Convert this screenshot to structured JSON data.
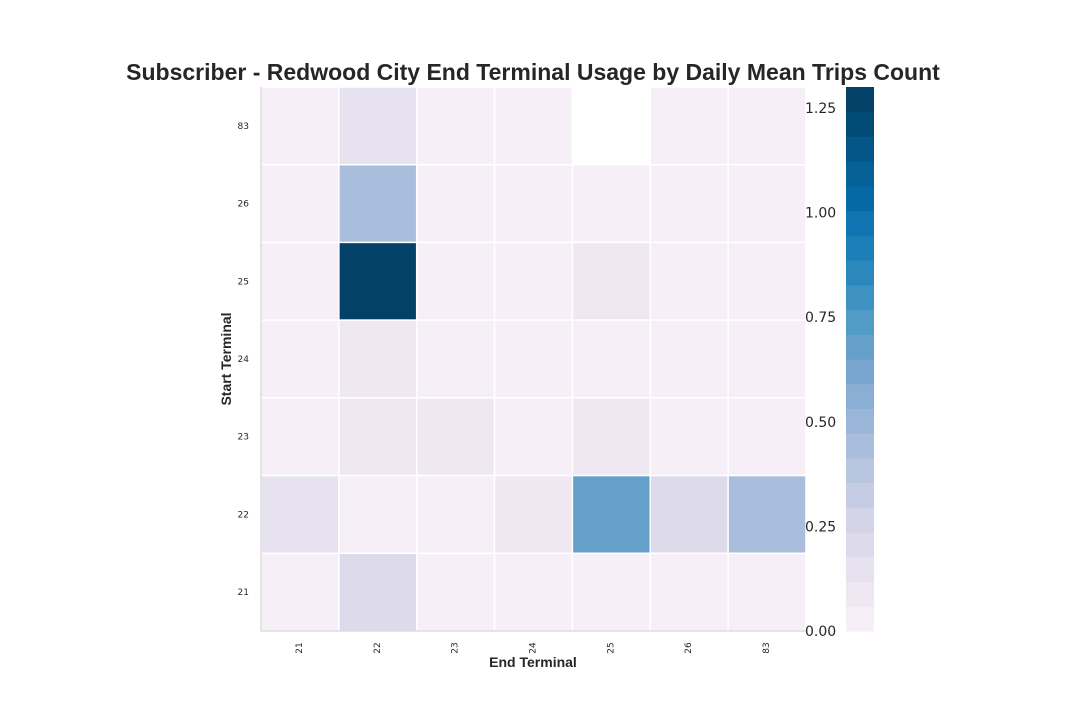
{
  "chart_data": {
    "type": "heatmap",
    "title": "Subscriber - Redwood City End Terminal Usage by Daily Mean Trips Count",
    "xlabel": "End Terminal",
    "ylabel": "Start Terminal",
    "x_categories": [
      "21",
      "22",
      "23",
      "24",
      "25",
      "26",
      "83"
    ],
    "y_categories": [
      "83",
      "26",
      "25",
      "24",
      "23",
      "22",
      "21"
    ],
    "values": [
      [
        0.01,
        0.15,
        0.01,
        0.01,
        null,
        0.01,
        0.01
      ],
      [
        0.01,
        0.42,
        0.01,
        0.01,
        0.01,
        0.01,
        0.01
      ],
      [
        0.01,
        1.25,
        0.05,
        0.01,
        0.06,
        0.01,
        0.01
      ],
      [
        0.01,
        0.06,
        0.01,
        0.01,
        0.01,
        0.01,
        0.01
      ],
      [
        0.01,
        0.1,
        0.06,
        0.01,
        0.07,
        0.01,
        0.01
      ],
      [
        0.12,
        0.01,
        0.05,
        0.06,
        0.7,
        0.22,
        0.45
      ],
      [
        0.01,
        0.2,
        0.01,
        0.01,
        0.01,
        0.01,
        0.01
      ]
    ],
    "colorbar": {
      "min": 0.0,
      "max": 1.3,
      "ticks": [
        "0.00",
        "0.25",
        "0.50",
        "0.75",
        "1.00",
        "1.25"
      ],
      "colors": [
        "#f6eff7",
        "#efe7f2",
        "#e6e2ef",
        "#dddbeb",
        "#d3d4e7",
        "#c6cce3",
        "#b8c6e0",
        "#a9bddc",
        "#99b6d8",
        "#8aaed4",
        "#78a5cf",
        "#65a0cb",
        "#529bc7",
        "#3d92c1",
        "#2a88bc",
        "#1c7fb8",
        "#0e74b2",
        "#0569a5",
        "#046096",
        "#035687",
        "#034b77",
        "#034168"
      ]
    },
    "grid": false
  }
}
